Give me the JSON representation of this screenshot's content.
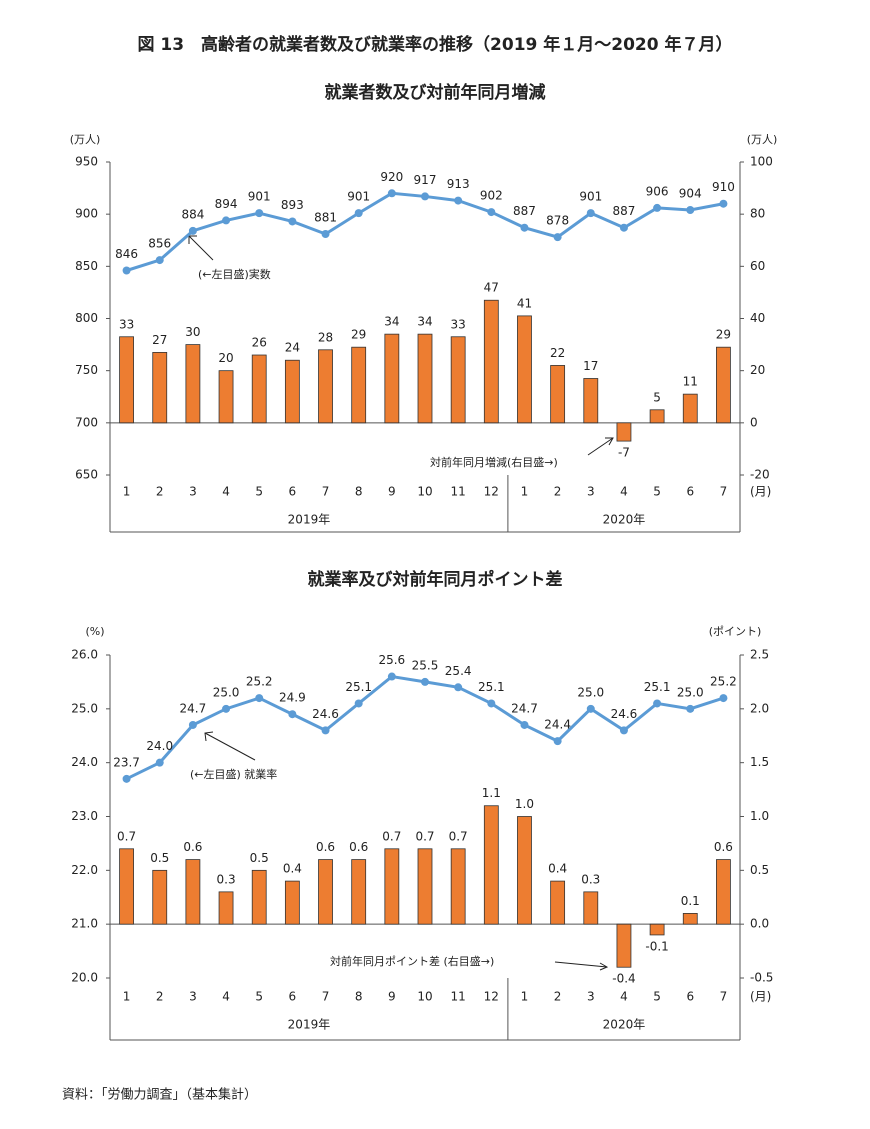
{
  "page_title": "図 13　高齢者の就業者数及び就業率の推移（2019 年１月～2020 年７月）",
  "source": "資料：「労働力調査」（基本集計）",
  "chart_data": [
    {
      "type": "combo",
      "title": "就業者数及び対前年同月増減",
      "y_unit": "(万人)",
      "y2_unit": "(万人)",
      "x_unit": "(月)",
      "categories": [
        "1",
        "2",
        "3",
        "4",
        "5",
        "6",
        "7",
        "8",
        "9",
        "10",
        "11",
        "12",
        "1",
        "2",
        "3",
        "4",
        "5",
        "6",
        "7"
      ],
      "groups": [
        "2019年",
        "2020年"
      ],
      "annotations": [
        "(←左目盛)実数",
        "対前年同月増減(右目盛→)"
      ],
      "ylim": [
        650,
        950
      ],
      "yticks": [
        650,
        700,
        750,
        800,
        850,
        900,
        950
      ],
      "y2lim": [
        -20,
        100
      ],
      "y2ticks": [
        -20,
        0,
        20,
        40,
        60,
        80,
        100
      ],
      "series": [
        {
          "kind": "line",
          "axis": "y",
          "color": "#5b9bd5",
          "values": [
            846,
            856,
            884,
            894,
            901,
            893,
            881,
            901,
            920,
            917,
            913,
            902,
            887,
            878,
            901,
            887,
            906,
            904,
            910
          ]
        },
        {
          "kind": "bar",
          "axis": "y2",
          "color": "#ed7d31",
          "values": [
            33,
            27,
            30,
            20,
            26,
            24,
            28,
            29,
            34,
            34,
            33,
            47,
            41,
            22,
            17,
            -7,
            5,
            11,
            29
          ]
        }
      ]
    },
    {
      "type": "combo",
      "title": "就業率及び対前年同月ポイント差",
      "y_unit": "(%)",
      "y2_unit": "(ポイント)",
      "x_unit": "(月)",
      "categories": [
        "1",
        "2",
        "3",
        "4",
        "5",
        "6",
        "7",
        "8",
        "9",
        "10",
        "11",
        "12",
        "1",
        "2",
        "3",
        "4",
        "5",
        "6",
        "7"
      ],
      "groups": [
        "2019年",
        "2020年"
      ],
      "annotations": [
        "(←左目盛) 就業率",
        "対前年同月ポイント差 (右目盛→)"
      ],
      "ylim": [
        20,
        26
      ],
      "yticks": [
        {
          "value": 20,
          "label": "20.0"
        },
        {
          "value": 21,
          "label": "21.0"
        },
        {
          "value": 22,
          "label": "22.0"
        },
        {
          "value": 23,
          "label": "23.0"
        },
        {
          "value": 24,
          "label": "24.0"
        },
        {
          "value": 25,
          "label": "25.0"
        },
        {
          "value": 26,
          "label": "26.0"
        }
      ],
      "y2lim": [
        -0.5,
        2.5
      ],
      "y2ticks": [
        -0.5,
        {
          "value": 0,
          "label": "0.0"
        },
        0.5,
        {
          "value": 1,
          "label": "1.0"
        },
        1.5,
        {
          "value": 2,
          "label": "2.0"
        },
        2.5
      ],
      "series": [
        {
          "kind": "line",
          "axis": "y",
          "color": "#5b9bd5",
          "values": [
            23.7,
            24.0,
            24.7,
            25.0,
            25.2,
            24.9,
            24.6,
            25.1,
            25.6,
            25.5,
            25.4,
            25.1,
            24.7,
            24.4,
            25.0,
            24.6,
            25.1,
            25.0,
            25.2
          ],
          "value_labels": [
            "23.7",
            "24.0",
            "24.7",
            "25.0",
            "25.2",
            "24.9",
            "24.6",
            "25.1",
            "25.6",
            "25.5",
            "25.4",
            "25.1",
            "24.7",
            "24.4",
            "25.0",
            "24.6",
            "25.1",
            "25.0",
            "25.2"
          ]
        },
        {
          "kind": "bar",
          "axis": "y2",
          "color": "#ed7d31",
          "values": [
            0.7,
            0.5,
            0.6,
            0.3,
            0.5,
            0.4,
            0.6,
            0.6,
            0.7,
            0.7,
            0.7,
            1.1,
            1.0,
            0.4,
            0.3,
            -0.4,
            -0.1,
            0.1,
            0.6
          ],
          "value_labels": [
            "0.7",
            "0.5",
            "0.6",
            "0.3",
            "0.5",
            "0.4",
            "0.6",
            "0.6",
            "0.7",
            "0.7",
            "0.7",
            "1.1",
            "1.0",
            "0.4",
            "0.3",
            "-0.4",
            "-0.1",
            "0.1",
            "0.6"
          ]
        }
      ]
    }
  ]
}
